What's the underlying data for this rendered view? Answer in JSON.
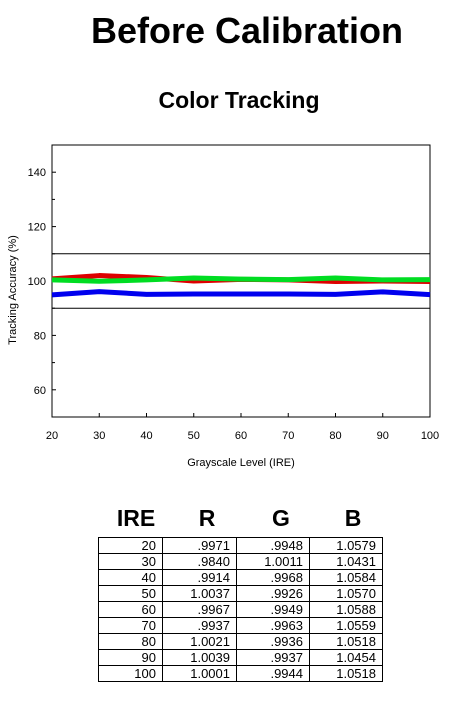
{
  "page": {
    "main_title": "Before Calibration",
    "chart_title": "Color Tracking"
  },
  "chart_data": {
    "type": "line",
    "title": "Color Tracking",
    "xlabel": "Grayscale Level (IRE)",
    "ylabel": "Tracking Accuracy (%)",
    "xlim": [
      20,
      100
    ],
    "ylim": [
      50,
      150
    ],
    "x_ticks": [
      20,
      30,
      40,
      50,
      60,
      70,
      80,
      90,
      100
    ],
    "y_ticks": [
      60,
      80,
      100,
      120,
      140
    ],
    "reference_lines": [
      90,
      110
    ],
    "x": [
      20,
      30,
      40,
      50,
      60,
      70,
      80,
      90,
      100
    ],
    "series": [
      {
        "color": "#dd0000",
        "values": [
          100.8,
          102.0,
          101.3,
          100.0,
          100.6,
          100.4,
          99.8,
          100.0,
          99.8
        ]
      },
      {
        "color": "#00dd22",
        "values": [
          100.4,
          99.9,
          100.4,
          101.1,
          100.7,
          100.5,
          101.1,
          100.4,
          100.5
        ]
      },
      {
        "color": "#0000ee",
        "values": [
          94.9,
          96.1,
          95.1,
          95.2,
          95.2,
          95.2,
          95.1,
          96.0,
          95.0
        ]
      }
    ],
    "grid": false,
    "legend": "none"
  },
  "table": {
    "headers": [
      "IRE",
      "R",
      "G",
      "B"
    ],
    "rows": [
      [
        "20",
        ".9971",
        ".9948",
        "1.0579"
      ],
      [
        "30",
        ".9840",
        "1.0011",
        "1.0431"
      ],
      [
        "40",
        ".9914",
        ".9968",
        "1.0584"
      ],
      [
        "50",
        "1.0037",
        ".9926",
        "1.0570"
      ],
      [
        "60",
        ".9967",
        ".9949",
        "1.0588"
      ],
      [
        "70",
        ".9937",
        ".9963",
        "1.0559"
      ],
      [
        "80",
        "1.0021",
        ".9936",
        "1.0518"
      ],
      [
        "90",
        "1.0039",
        ".9937",
        "1.0454"
      ],
      [
        "100",
        "1.0001",
        ".9944",
        "1.0518"
      ]
    ]
  }
}
